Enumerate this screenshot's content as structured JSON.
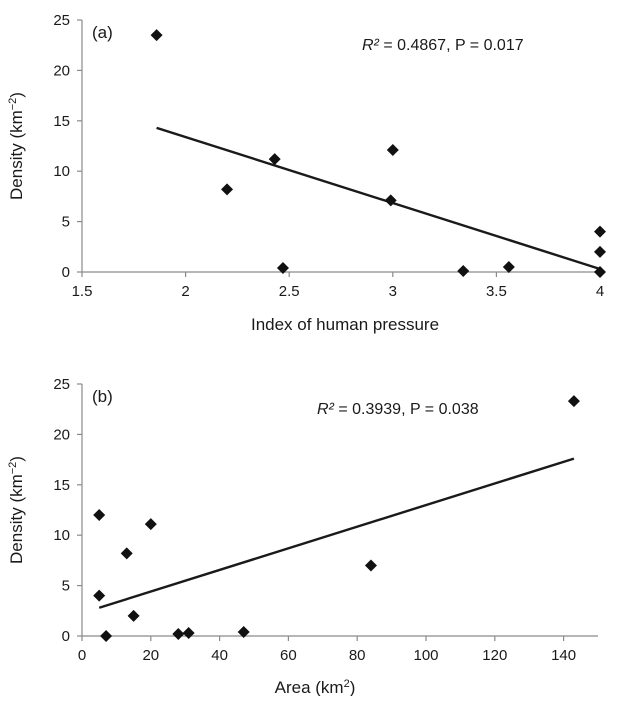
{
  "chart_data": [
    {
      "type": "scatter",
      "panel_label": "(a)",
      "annotation": {
        "r2_symbol": "R²",
        "rest": " = 0.4867, P = 0.017"
      },
      "xlabel": "Index of human pressure",
      "ylabel": {
        "main": "Density (km",
        "sup": "−2",
        "tail": ")"
      },
      "xlim": [
        1.5,
        4
      ],
      "ylim": [
        0,
        25
      ],
      "xticks": [
        "1.5",
        "2",
        "2.5",
        "3",
        "3.5",
        "4"
      ],
      "xtick_values": [
        1.5,
        2,
        2.5,
        3,
        3.5,
        4
      ],
      "yticks": [
        "0",
        "5",
        "10",
        "15",
        "20",
        "25"
      ],
      "ytick_values": [
        0,
        5,
        10,
        15,
        20,
        25
      ],
      "points": [
        {
          "x": 1.86,
          "y": 23.5
        },
        {
          "x": 2.2,
          "y": 8.2
        },
        {
          "x": 2.43,
          "y": 11.2
        },
        {
          "x": 2.47,
          "y": 0.4
        },
        {
          "x": 2.99,
          "y": 7.1
        },
        {
          "x": 3.0,
          "y": 12.1
        },
        {
          "x": 3.34,
          "y": 0.1
        },
        {
          "x": 3.56,
          "y": 0.5
        },
        {
          "x": 4.0,
          "y": 4.0
        },
        {
          "x": 4.0,
          "y": 2.0
        },
        {
          "x": 4.0,
          "y": 0.0
        }
      ],
      "trendline": {
        "x": [
          1.86,
          4.0
        ],
        "y": [
          14.3,
          0.3
        ]
      },
      "marker_color": "#111111",
      "grid": false
    },
    {
      "type": "scatter",
      "panel_label": "(b)",
      "annotation": {
        "r2_symbol": "R²",
        "rest": " = 0.3939, P = 0.038"
      },
      "xlabel": {
        "main": "Area (km",
        "sup": "2",
        "tail": ")"
      },
      "ylabel": {
        "main": "Density (km",
        "sup": "−2",
        "tail": ")"
      },
      "xlim": [
        0,
        150
      ],
      "ylim": [
        0,
        25
      ],
      "xticks": [
        "0",
        "20",
        "40",
        "60",
        "80",
        "100",
        "120",
        "140"
      ],
      "xtick_values": [
        0,
        20,
        40,
        60,
        80,
        100,
        120,
        140
      ],
      "yticks": [
        "0",
        "5",
        "10",
        "15",
        "20",
        "25"
      ],
      "ytick_values": [
        0,
        5,
        10,
        15,
        20,
        25
      ],
      "points": [
        {
          "x": 5,
          "y": 12.0
        },
        {
          "x": 5,
          "y": 4.0
        },
        {
          "x": 7,
          "y": 0.0
        },
        {
          "x": 13,
          "y": 8.2
        },
        {
          "x": 15,
          "y": 2.0
        },
        {
          "x": 20,
          "y": 11.1
        },
        {
          "x": 28,
          "y": 0.2
        },
        {
          "x": 31,
          "y": 0.3
        },
        {
          "x": 47,
          "y": 0.4
        },
        {
          "x": 84,
          "y": 7.0
        },
        {
          "x": 143,
          "y": 23.3
        }
      ],
      "trendline": {
        "x": [
          5,
          143
        ],
        "y": [
          2.8,
          17.6
        ]
      },
      "marker_color": "#111111",
      "grid": false
    }
  ]
}
